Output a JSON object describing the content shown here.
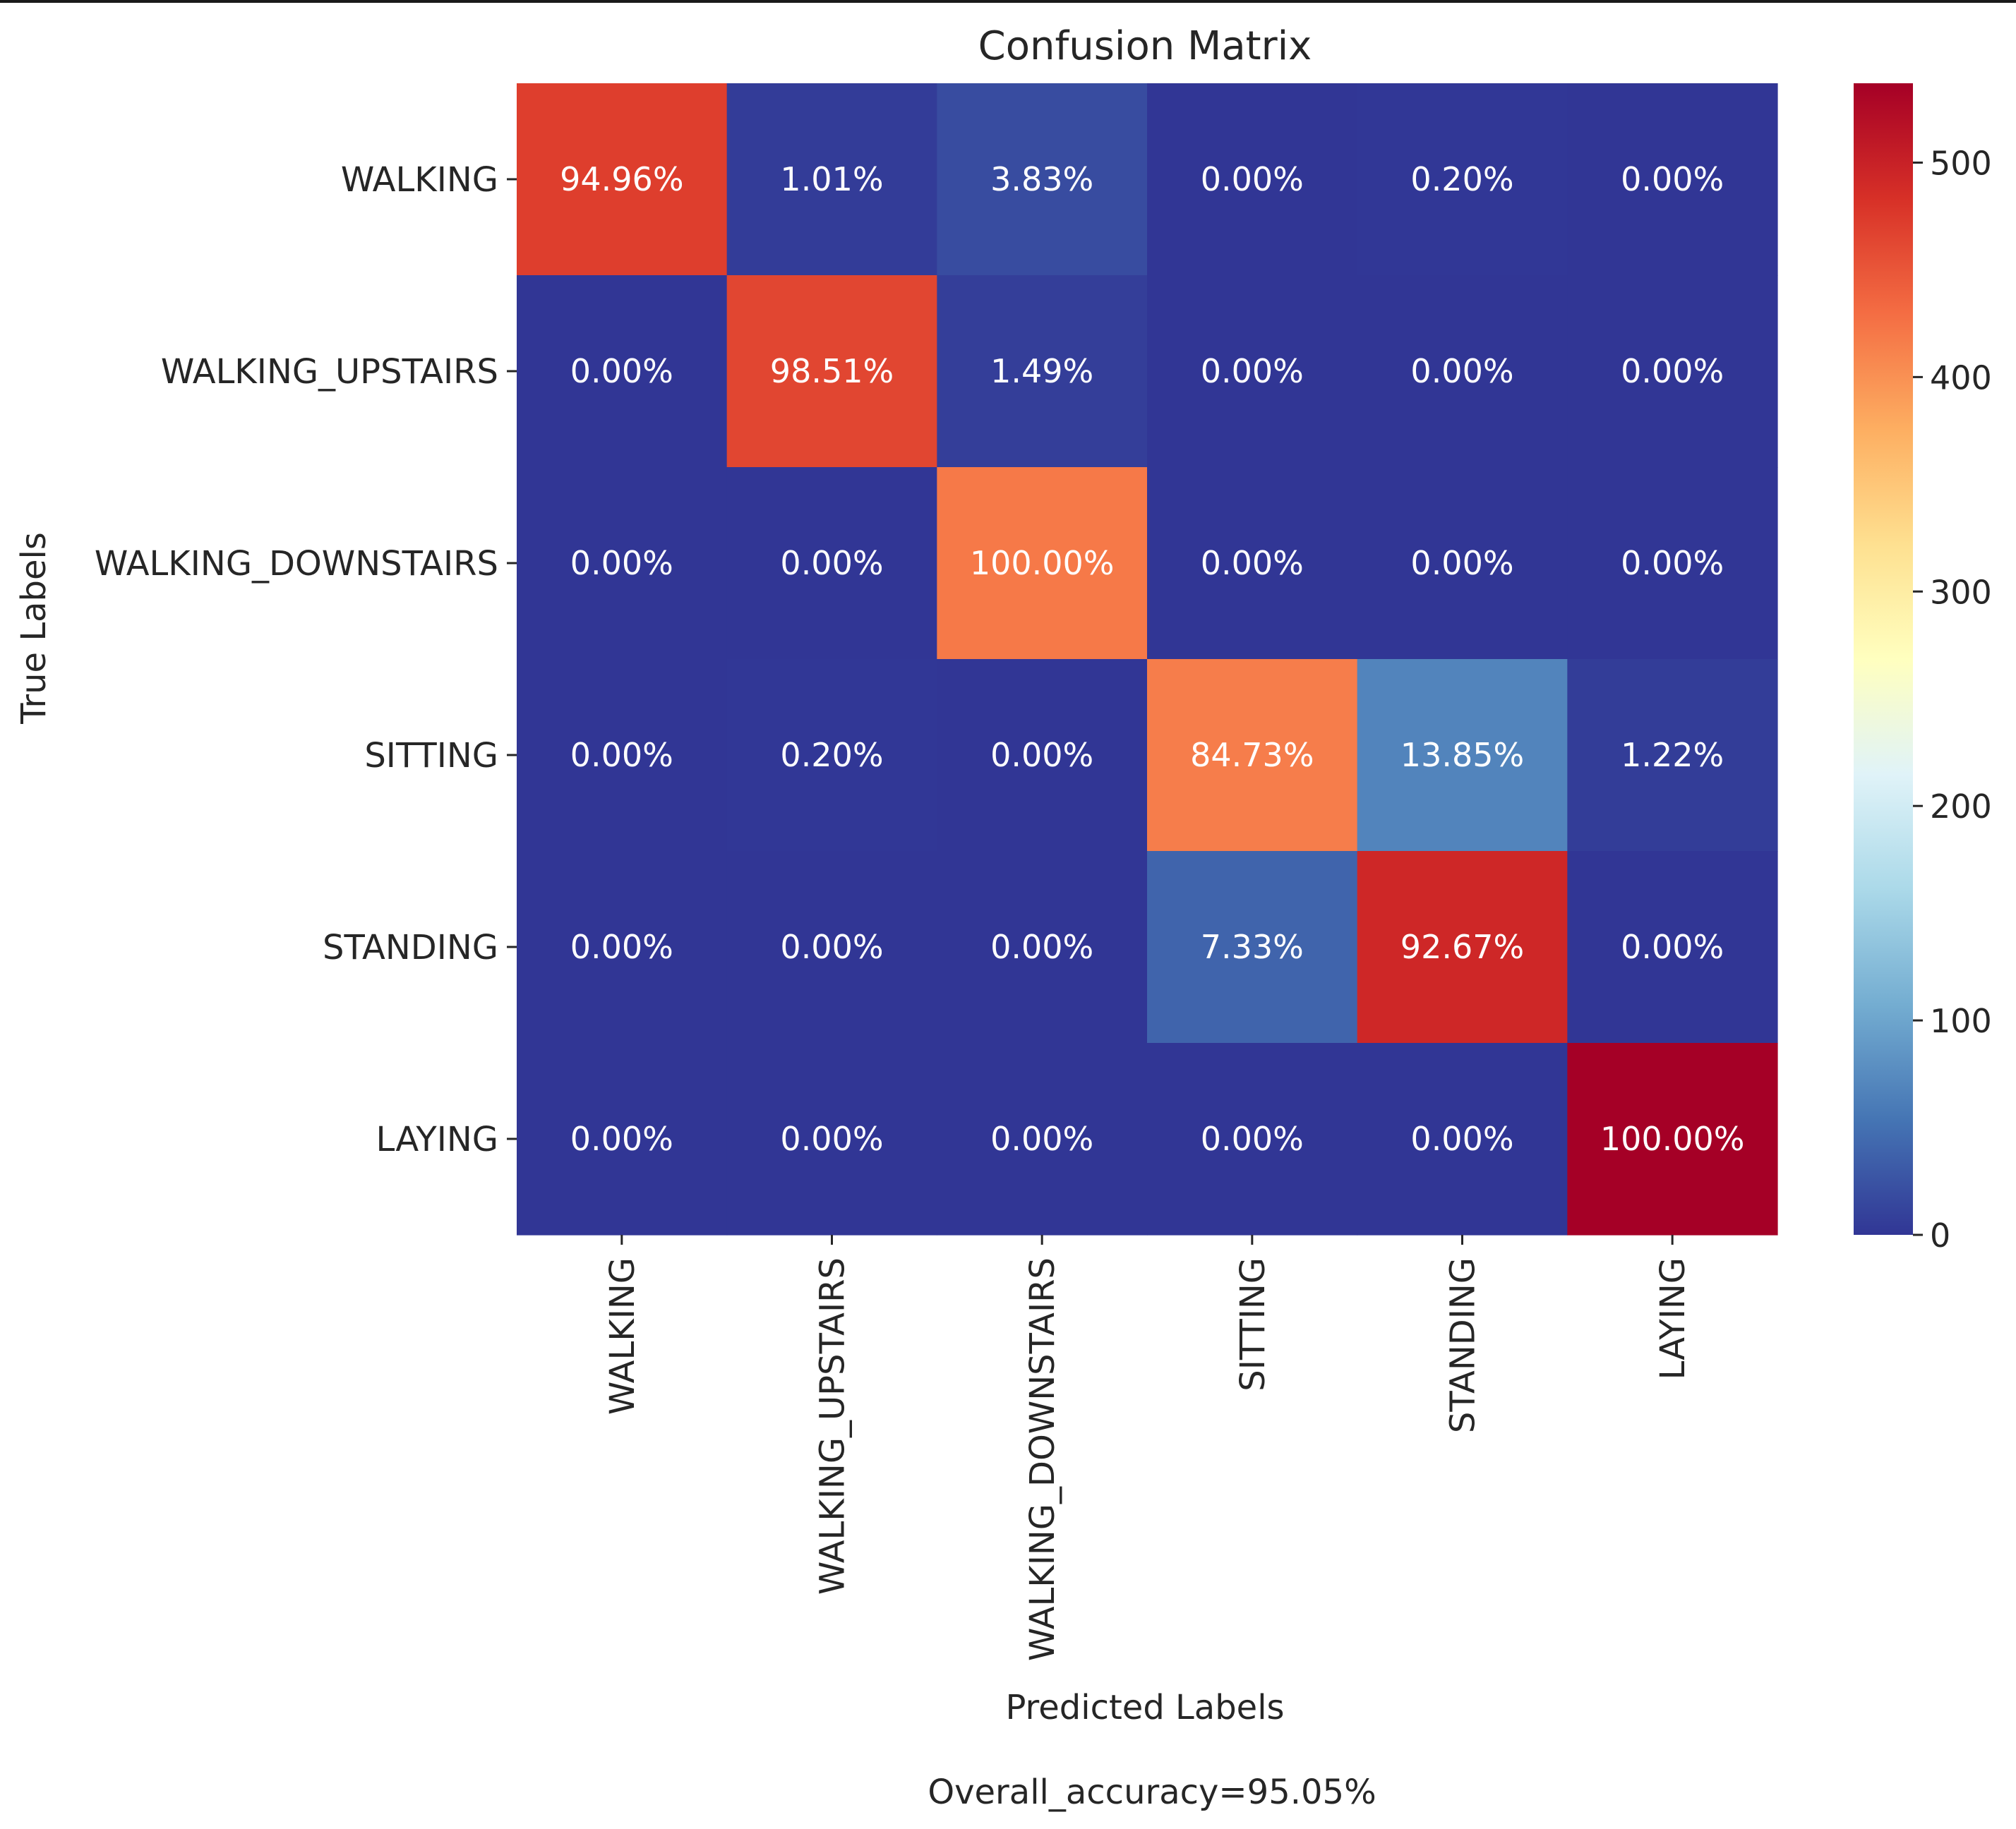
{
  "chart_data": {
    "type": "heatmap",
    "title": "Confusion Matrix",
    "xlabel": "Predicted Labels",
    "ylabel": "True Labels",
    "footer": "Overall_accuracy=95.05%",
    "categories": [
      "WALKING",
      "WALKING_UPSTAIRS",
      "WALKING_DOWNSTAIRS",
      "SITTING",
      "STANDING",
      "LAYING"
    ],
    "x_categories": [
      "WALKING",
      "WALKING_UPSTAIRS",
      "WALKING_DOWNSTAIRS",
      "SITTING",
      "STANDING",
      "LAYING"
    ],
    "y_categories": [
      "WALKING",
      "WALKING_UPSTAIRS",
      "WALKING_DOWNSTAIRS",
      "SITTING",
      "STANDING",
      "LAYING"
    ],
    "cell_labels": [
      [
        "94.96%",
        "1.01%",
        "3.83%",
        "0.00%",
        "0.20%",
        "0.00%"
      ],
      [
        "0.00%",
        "98.51%",
        "1.49%",
        "0.00%",
        "0.00%",
        "0.00%"
      ],
      [
        "0.00%",
        "0.00%",
        "100.00%",
        "0.00%",
        "0.00%",
        "0.00%"
      ],
      [
        "0.00%",
        "0.20%",
        "0.00%",
        "84.73%",
        "13.85%",
        "1.22%"
      ],
      [
        "0.00%",
        "0.00%",
        "0.00%",
        "7.33%",
        "92.67%",
        "0.00%"
      ],
      [
        "0.00%",
        "0.00%",
        "0.00%",
        "0.00%",
        "0.00%",
        "100.00%"
      ]
    ],
    "values": [
      [
        471,
        5,
        19,
        0,
        1,
        0
      ],
      [
        0,
        464,
        7,
        0,
        0,
        0
      ],
      [
        0,
        0,
        420,
        0,
        0,
        0
      ],
      [
        0,
        1,
        0,
        416,
        68,
        6
      ],
      [
        0,
        0,
        0,
        39,
        493,
        0
      ],
      [
        0,
        0,
        0,
        0,
        0,
        537
      ]
    ],
    "colorbar": {
      "vmin": 0,
      "vmax": 537,
      "ticks": [
        0,
        100,
        200,
        300,
        400,
        500
      ],
      "colormap": "RdYlBu_r",
      "colors": [
        "#313695",
        "#4575b4",
        "#74add1",
        "#abd9e9",
        "#e0f3f8",
        "#ffffbf",
        "#fee090",
        "#fdae61",
        "#f46d43",
        "#d73027",
        "#a50026"
      ]
    },
    "grid": false,
    "text_color": "#262626",
    "annotation_color": "#ffffff"
  }
}
